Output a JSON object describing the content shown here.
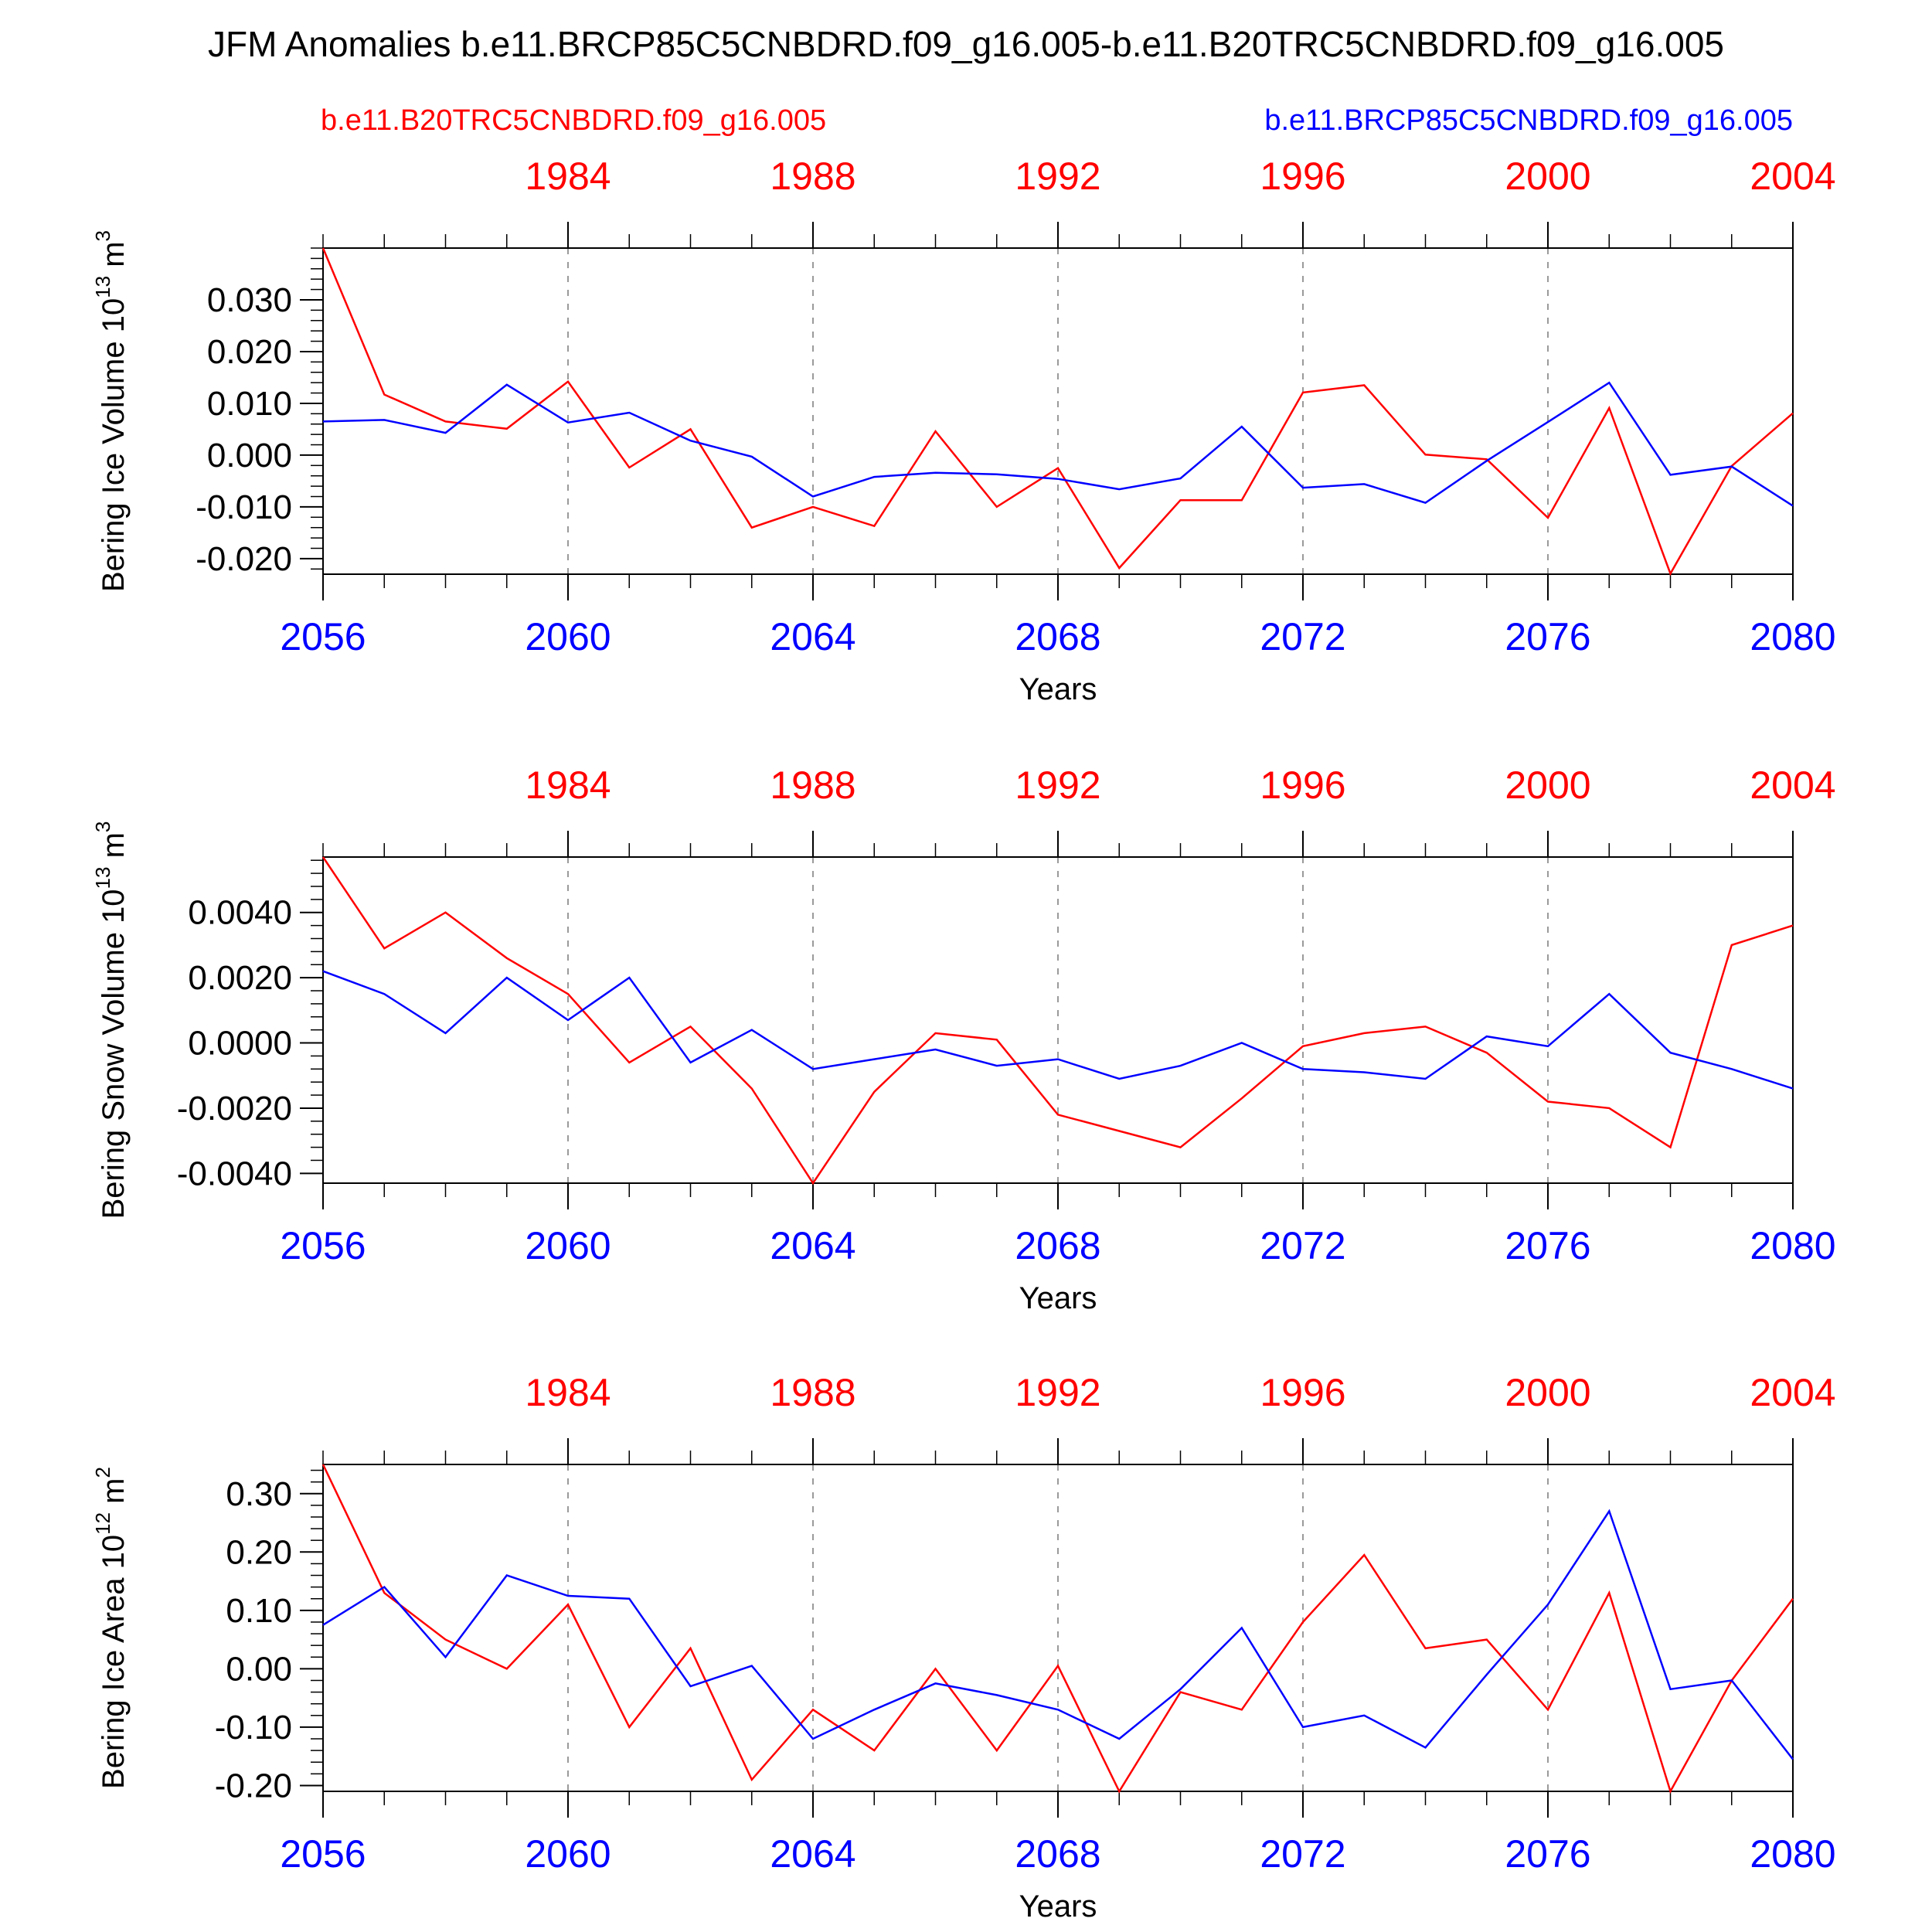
{
  "title": "JFM Anomalies b.e11.BRCP85C5CNBDRD.f09_g16.005-b.e11.B20TRC5CNBDRD.f09_g16.005",
  "legend": {
    "left": "b.e11.B20TRC5CNBDRD.f09_g16.005",
    "right": "b.e11.BRCP85C5CNBDRD.f09_g16.005"
  },
  "colors": {
    "historical": "#ff0000",
    "future": "#0000ff",
    "grid": "#9a9a9a"
  },
  "chart_data": [
    {
      "type": "line",
      "ylabel": "Bering Ice Volume 10",
      "ylabel_exp": "13",
      "ylabel_unit": " m",
      "ylabel_unit_exp": "3",
      "xlabel": "Years",
      "ylim": [
        -0.023,
        0.04
      ],
      "yticks": [
        -0.02,
        -0.01,
        0.0,
        0.01,
        0.02,
        0.03
      ],
      "ytick_labels": [
        "-0.020",
        "-0.010",
        "0.000",
        "0.010",
        "0.020",
        "0.030"
      ],
      "xlim": [
        2056,
        2080
      ],
      "xticks": [
        2056,
        2060,
        2064,
        2068,
        2072,
        2076,
        2080
      ],
      "xtick_labels": [
        "2056",
        "2060",
        "2064",
        "2068",
        "2072",
        "2076",
        "2080"
      ],
      "top_xticks": [
        1984,
        1988,
        1992,
        1996,
        2000,
        2004
      ],
      "top_xtick_labels": [
        "1984",
        "1988",
        "1992",
        "1996",
        "2000",
        "2004"
      ],
      "top_offset": 76,
      "grid_x": [
        2060,
        2064,
        2068,
        2072,
        2076
      ],
      "x": [
        2056,
        2057,
        2058,
        2059,
        2060,
        2061,
        2062,
        2063,
        2064,
        2065,
        2066,
        2067,
        2068,
        2069,
        2070,
        2071,
        2072,
        2073,
        2074,
        2075,
        2076,
        2077,
        2078,
        2079,
        2080
      ],
      "series": [
        {
          "key": "historical",
          "values": [
            0.04,
            0.0117,
            0.0065,
            0.0051,
            0.0142,
            -0.0024,
            0.005,
            -0.014,
            -0.01,
            -0.0137,
            0.0046,
            -0.01,
            -0.0025,
            -0.0218,
            -0.0087,
            -0.0087,
            0.0121,
            0.0135,
            0.0001,
            -0.0008,
            -0.0121,
            0.0091,
            -0.0229,
            -0.0021,
            0.0081
          ]
        },
        {
          "key": "future",
          "values": [
            0.0065,
            0.0068,
            0.0043,
            0.0136,
            0.0063,
            0.0082,
            0.0028,
            -0.0003,
            -0.008,
            -0.0042,
            -0.0034,
            -0.0037,
            -0.0046,
            -0.0066,
            -0.0045,
            0.0055,
            -0.0063,
            -0.0056,
            -0.0092,
            -0.0011,
            0.0064,
            0.014,
            -0.0038,
            -0.0022,
            -0.0098
          ]
        }
      ]
    },
    {
      "type": "line",
      "ylabel": "Bering Snow Volume 10",
      "ylabel_exp": "13",
      "ylabel_unit": " m",
      "ylabel_unit_exp": "3",
      "xlabel": "Years",
      "ylim": [
        -0.0043,
        0.0057
      ],
      "yticks": [
        -0.004,
        -0.002,
        0.0,
        0.002,
        0.004
      ],
      "ytick_labels": [
        "-0.0040",
        "-0.0020",
        "0.0000",
        "0.0020",
        "0.0040"
      ],
      "xlim": [
        2056,
        2080
      ],
      "xticks": [
        2056,
        2060,
        2064,
        2068,
        2072,
        2076,
        2080
      ],
      "xtick_labels": [
        "2056",
        "2060",
        "2064",
        "2068",
        "2072",
        "2076",
        "2080"
      ],
      "top_xticks": [
        1984,
        1988,
        1992,
        1996,
        2000,
        2004
      ],
      "top_xtick_labels": [
        "1984",
        "1988",
        "1992",
        "1996",
        "2000",
        "2004"
      ],
      "top_offset": 76,
      "grid_x": [
        2060,
        2064,
        2068,
        2072,
        2076
      ],
      "x": [
        2056,
        2057,
        2058,
        2059,
        2060,
        2061,
        2062,
        2063,
        2064,
        2065,
        2066,
        2067,
        2068,
        2069,
        2070,
        2071,
        2072,
        2073,
        2074,
        2075,
        2076,
        2077,
        2078,
        2079,
        2080
      ],
      "series": [
        {
          "key": "historical",
          "values": [
            0.0057,
            0.0029,
            0.004,
            0.0026,
            0.0015,
            -0.0006,
            0.0005,
            -0.0014,
            -0.0043,
            -0.0015,
            0.0003,
            0.0001,
            -0.0022,
            -0.0027,
            -0.0032,
            -0.0017,
            -0.0001,
            0.0003,
            0.0005,
            -0.0003,
            -0.0018,
            -0.002,
            -0.0032,
            0.003,
            0.0036
          ]
        },
        {
          "key": "future",
          "values": [
            0.0022,
            0.0015,
            0.0003,
            0.002,
            0.0007,
            0.002,
            -0.0006,
            0.0004,
            -0.0008,
            -0.0005,
            -0.0002,
            -0.0007,
            -0.0005,
            -0.0011,
            -0.0007,
            0.0,
            -0.0008,
            -0.0009,
            -0.0011,
            0.0002,
            -0.0001,
            0.0015,
            -0.0003,
            -0.0008,
            -0.0014
          ]
        }
      ]
    },
    {
      "type": "line",
      "ylabel": "Bering Ice Area 10",
      "ylabel_exp": "12",
      "ylabel_unit": " m",
      "ylabel_unit_exp": "2",
      "xlabel": "Years",
      "ylim": [
        -0.21,
        0.35
      ],
      "yticks": [
        -0.2,
        -0.1,
        0.0,
        0.1,
        0.2,
        0.3
      ],
      "ytick_labels": [
        "-0.20",
        "-0.10",
        "0.00",
        "0.10",
        "0.20",
        "0.30"
      ],
      "xlim": [
        2056,
        2080
      ],
      "xticks": [
        2056,
        2060,
        2064,
        2068,
        2072,
        2076,
        2080
      ],
      "xtick_labels": [
        "2056",
        "2060",
        "2064",
        "2068",
        "2072",
        "2076",
        "2080"
      ],
      "top_xticks": [
        1984,
        1988,
        1992,
        1996,
        2000,
        2004
      ],
      "top_xtick_labels": [
        "1984",
        "1988",
        "1992",
        "1996",
        "2000",
        "2004"
      ],
      "top_offset": 76,
      "grid_x": [
        2060,
        2064,
        2068,
        2072,
        2076
      ],
      "x": [
        2056,
        2057,
        2058,
        2059,
        2060,
        2061,
        2062,
        2063,
        2064,
        2065,
        2066,
        2067,
        2068,
        2069,
        2070,
        2071,
        2072,
        2073,
        2074,
        2075,
        2076,
        2077,
        2078,
        2079,
        2080
      ],
      "series": [
        {
          "key": "historical",
          "values": [
            0.35,
            0.13,
            0.05,
            0.0,
            0.11,
            -0.1,
            0.035,
            -0.19,
            -0.07,
            -0.14,
            0.0,
            -0.14,
            0.005,
            -0.21,
            -0.04,
            -0.07,
            0.08,
            0.195,
            0.035,
            0.05,
            -0.07,
            0.13,
            -0.21,
            -0.02,
            0.12
          ]
        },
        {
          "key": "future",
          "values": [
            0.075,
            0.14,
            0.02,
            0.16,
            0.125,
            0.12,
            -0.03,
            0.005,
            -0.12,
            -0.07,
            -0.025,
            -0.045,
            -0.07,
            -0.12,
            -0.035,
            0.07,
            -0.1,
            -0.08,
            -0.135,
            -0.01,
            0.11,
            0.27,
            -0.035,
            -0.02,
            -0.155
          ]
        }
      ]
    }
  ]
}
